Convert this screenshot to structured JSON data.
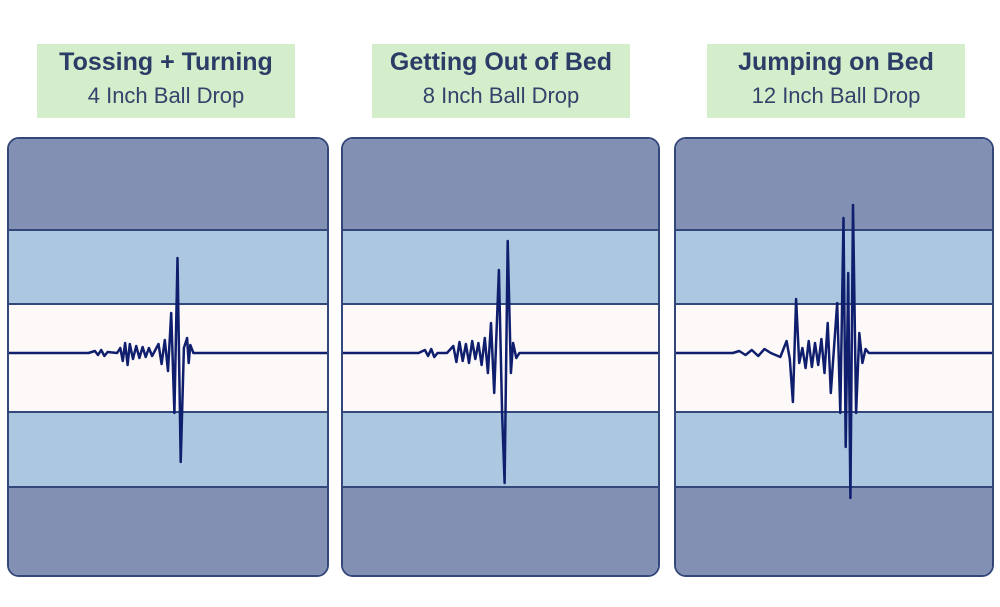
{
  "panels": [
    {
      "title": "Tossing + Turning",
      "subtitle": "4 Inch Ball Drop",
      "waveform": [
        [
          0,
          0
        ],
        [
          25,
          0
        ],
        [
          27,
          2
        ],
        [
          28,
          -2
        ],
        [
          29,
          3
        ],
        [
          30,
          -3
        ],
        [
          31,
          1
        ],
        [
          34,
          0
        ],
        [
          35,
          5
        ],
        [
          35.8,
          -8
        ],
        [
          36.5,
          10
        ],
        [
          37.3,
          -12
        ],
        [
          38,
          9
        ],
        [
          39,
          -6
        ],
        [
          40,
          7
        ],
        [
          41,
          -5
        ],
        [
          42,
          6
        ],
        [
          43,
          -4
        ],
        [
          44,
          5
        ],
        [
          45,
          -3
        ],
        [
          47,
          9
        ],
        [
          48,
          -11
        ],
        [
          49,
          13
        ],
        [
          50,
          -18
        ],
        [
          51,
          40
        ],
        [
          52,
          -60
        ],
        [
          53,
          95
        ],
        [
          54,
          -109
        ],
        [
          55,
          5
        ],
        [
          56,
          15
        ],
        [
          56.5,
          -10
        ],
        [
          57,
          8
        ],
        [
          58,
          0
        ],
        [
          100,
          0
        ]
      ]
    },
    {
      "title": "Getting Out of Bed",
      "subtitle": "8 Inch Ball Drop",
      "waveform": [
        [
          0,
          0
        ],
        [
          24,
          0
        ],
        [
          26,
          3
        ],
        [
          27,
          -3
        ],
        [
          28,
          4
        ],
        [
          29,
          -4
        ],
        [
          30,
          0
        ],
        [
          33,
          0
        ],
        [
          35,
          7
        ],
        [
          36,
          -9
        ],
        [
          37,
          11
        ],
        [
          38,
          -8
        ],
        [
          39,
          9
        ],
        [
          40,
          -10
        ],
        [
          41,
          12
        ],
        [
          42,
          -6
        ],
        [
          43,
          10
        ],
        [
          44,
          -12
        ],
        [
          45,
          15
        ],
        [
          46,
          -20
        ],
        [
          47,
          30
        ],
        [
          48,
          -40
        ],
        [
          49.5,
          83
        ],
        [
          50.5,
          -60
        ],
        [
          51.3,
          -130
        ],
        [
          52.3,
          112
        ],
        [
          53.3,
          -20
        ],
        [
          54,
          10
        ],
        [
          55,
          -5
        ],
        [
          56,
          0
        ],
        [
          100,
          0
        ]
      ]
    },
    {
      "title": "Jumping on Bed",
      "subtitle": "12 Inch Ball Drop",
      "waveform": [
        [
          0,
          0
        ],
        [
          18,
          0
        ],
        [
          20,
          2
        ],
        [
          22,
          -2
        ],
        [
          24,
          3
        ],
        [
          26,
          -3
        ],
        [
          28,
          4
        ],
        [
          30,
          0
        ],
        [
          33,
          -4
        ],
        [
          35,
          12
        ],
        [
          36,
          -6
        ],
        [
          37,
          -49
        ],
        [
          38,
          54
        ],
        [
          39,
          -10
        ],
        [
          40,
          5
        ],
        [
          41,
          -15
        ],
        [
          42,
          12
        ],
        [
          43,
          -14
        ],
        [
          44,
          10
        ],
        [
          45,
          -12
        ],
        [
          46,
          14
        ],
        [
          47,
          -20
        ],
        [
          48,
          30
        ],
        [
          49,
          -40
        ],
        [
          51,
          50
        ],
        [
          52,
          -60
        ],
        [
          53,
          135
        ],
        [
          53.7,
          -94
        ],
        [
          54.5,
          80
        ],
        [
          55.2,
          -145
        ],
        [
          56,
          148
        ],
        [
          57,
          -60
        ],
        [
          58,
          20
        ],
        [
          59,
          -10
        ],
        [
          60,
          4
        ],
        [
          61,
          0
        ],
        [
          100,
          0
        ]
      ]
    }
  ],
  "colors": {
    "trace": "#0f1f6e",
    "label_bg": "#d4eecb",
    "frame": "#34477a"
  }
}
